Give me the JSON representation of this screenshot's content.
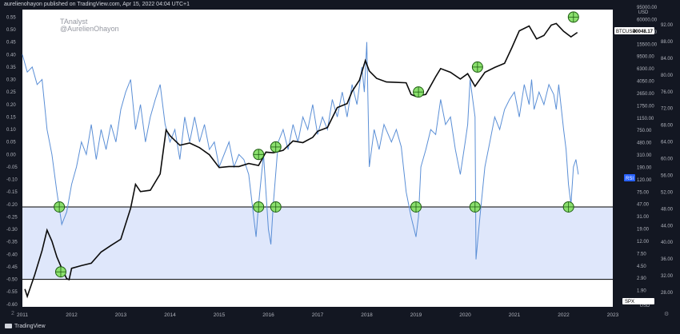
{
  "header": {
    "text": "aurelienohayon published on TradingView.com, Apr 15, 2022 04:04 UTC+1"
  },
  "watermark": {
    "line1": "TAnalyst",
    "line2": "@AurelienOhayon"
  },
  "footer": {
    "brand": "TradingView"
  },
  "controls": {
    "left_label": "2",
    "right_label": "⚙"
  },
  "colors": {
    "background": "#131722",
    "rsi_line": "#5b8fd6",
    "btc_line": "#0b0b0b",
    "band_fill": "#dfe7fb",
    "band_lines": "#000000",
    "markers_fill": "#8be06e",
    "markers_stroke": "#1f5e12",
    "badge_btc": "#ffffff",
    "badge_rsi": "#2962ff"
  },
  "chart_data": {
    "type": "line",
    "x_ticks": [
      "2011",
      "2012",
      "2013",
      "2014",
      "2015",
      "2016",
      "2017",
      "2018",
      "2019",
      "2020",
      "2021",
      "2022",
      "2023"
    ],
    "left_axis_ticks": [
      "0.55",
      "0.50",
      "0.45",
      "0.40",
      "0.35",
      "0.30",
      "0.25",
      "0.20",
      "0.15",
      "0.10",
      "0.05",
      "0.00",
      "-0.05",
      "-0.10",
      "-0.15",
      "-0.20",
      "-0.25",
      "-0.30",
      "-0.35",
      "-0.40",
      "-0.45",
      "-0.50",
      "-0.55",
      "-0.60"
    ],
    "btc_axis_ticks": [
      "95000.00",
      "60000.00",
      "23500.00",
      "15500.00",
      "9500.00",
      "6300.00",
      "4050.00",
      "2650.00",
      "1750.00",
      "1150.00",
      "750.00",
      "480.00",
      "310.00",
      "190.00",
      "120.00",
      "75.00",
      "47.00",
      "31.00",
      "19.00",
      "12.00",
      "7.50",
      "4.50",
      "2.90",
      "1.90",
      "1.25"
    ],
    "btc_axis_top_label": "USD",
    "btc_axis_bottom_label": "USD",
    "rsi_axis_ticks": [
      "92.00",
      "88.00",
      "84.00",
      "80.00",
      "76.00",
      "72.00",
      "68.00",
      "64.00",
      "60.00",
      "56.00",
      "52.00",
      "48.00",
      "44.00",
      "40.00",
      "36.00",
      "32.00",
      "28.00"
    ],
    "badges": {
      "btc": {
        "label": "BTCUSD",
        "value": "40048.17"
      },
      "rsi": {
        "label": "RSI"
      },
      "spx": {
        "label": "SPX"
      }
    },
    "series": [
      {
        "name": "BTCUSD",
        "scale": "log",
        "points": [
          [
            2011.05,
            2.0
          ],
          [
            2011.1,
            1.5
          ],
          [
            2011.25,
            3.5
          ],
          [
            2011.4,
            9
          ],
          [
            2011.5,
            20
          ],
          [
            2011.6,
            13
          ],
          [
            2011.7,
            7
          ],
          [
            2011.8,
            4.5
          ],
          [
            2011.9,
            3
          ],
          [
            2011.95,
            2.9
          ],
          [
            2012.0,
            4.5
          ],
          [
            2012.2,
            5
          ],
          [
            2012.4,
            5.5
          ],
          [
            2012.6,
            8.5
          ],
          [
            2012.8,
            11
          ],
          [
            2013.0,
            14
          ],
          [
            2013.2,
            47
          ],
          [
            2013.3,
            120
          ],
          [
            2013.4,
            90
          ],
          [
            2013.6,
            95
          ],
          [
            2013.8,
            180
          ],
          [
            2013.92,
            1000
          ],
          [
            2014.0,
            800
          ],
          [
            2014.2,
            550
          ],
          [
            2014.4,
            600
          ],
          [
            2014.6,
            500
          ],
          [
            2014.8,
            380
          ],
          [
            2015.0,
            230
          ],
          [
            2015.2,
            240
          ],
          [
            2015.4,
            240
          ],
          [
            2015.6,
            270
          ],
          [
            2015.8,
            250
          ],
          [
            2015.95,
            420
          ],
          [
            2016.1,
            410
          ],
          [
            2016.3,
            450
          ],
          [
            2016.5,
            650
          ],
          [
            2016.7,
            610
          ],
          [
            2016.9,
            750
          ],
          [
            2017.0,
            950
          ],
          [
            2017.2,
            1100
          ],
          [
            2017.4,
            2400
          ],
          [
            2017.6,
            2800
          ],
          [
            2017.7,
            4500
          ],
          [
            2017.85,
            7000
          ],
          [
            2017.97,
            15000
          ],
          [
            2018.05,
            10000
          ],
          [
            2018.2,
            7500
          ],
          [
            2018.4,
            6500
          ],
          [
            2018.6,
            6400
          ],
          [
            2018.8,
            6300
          ],
          [
            2018.9,
            4000
          ],
          [
            2019.0,
            3700
          ],
          [
            2019.2,
            4000
          ],
          [
            2019.4,
            8000
          ],
          [
            2019.5,
            11000
          ],
          [
            2019.7,
            9500
          ],
          [
            2019.9,
            7300
          ],
          [
            2020.05,
            9000
          ],
          [
            2020.2,
            5500
          ],
          [
            2020.4,
            9500
          ],
          [
            2020.6,
            11500
          ],
          [
            2020.8,
            13500
          ],
          [
            2020.95,
            25000
          ],
          [
            2021.1,
            48000
          ],
          [
            2021.3,
            58000
          ],
          [
            2021.45,
            35000
          ],
          [
            2021.6,
            40000
          ],
          [
            2021.75,
            60000
          ],
          [
            2021.85,
            64000
          ],
          [
            2022.0,
            47000
          ],
          [
            2022.15,
            38000
          ],
          [
            2022.28,
            45000
          ]
        ]
      },
      {
        "name": "RSI",
        "scale": "linear",
        "points": [
          [
            2011.0,
            0.4
          ],
          [
            2011.1,
            0.33
          ],
          [
            2011.2,
            0.35
          ],
          [
            2011.3,
            0.28
          ],
          [
            2011.4,
            0.3
          ],
          [
            2011.5,
            0.1
          ],
          [
            2011.6,
            0.0
          ],
          [
            2011.7,
            -0.15
          ],
          [
            2011.8,
            -0.28
          ],
          [
            2011.9,
            -0.23
          ],
          [
            2012.0,
            -0.12
          ],
          [
            2012.1,
            -0.05
          ],
          [
            2012.2,
            0.05
          ],
          [
            2012.3,
            0.0
          ],
          [
            2012.4,
            0.12
          ],
          [
            2012.5,
            -0.02
          ],
          [
            2012.6,
            0.1
          ],
          [
            2012.7,
            0.02
          ],
          [
            2012.8,
            0.12
          ],
          [
            2012.9,
            0.05
          ],
          [
            2013.0,
            0.18
          ],
          [
            2013.1,
            0.25
          ],
          [
            2013.2,
            0.3
          ],
          [
            2013.3,
            0.1
          ],
          [
            2013.4,
            0.2
          ],
          [
            2013.5,
            0.05
          ],
          [
            2013.6,
            0.15
          ],
          [
            2013.7,
            0.22
          ],
          [
            2013.8,
            0.28
          ],
          [
            2013.9,
            0.12
          ],
          [
            2014.0,
            0.05
          ],
          [
            2014.1,
            0.1
          ],
          [
            2014.2,
            -0.02
          ],
          [
            2014.3,
            0.15
          ],
          [
            2014.4,
            0.05
          ],
          [
            2014.5,
            0.15
          ],
          [
            2014.6,
            0.05
          ],
          [
            2014.7,
            0.12
          ],
          [
            2014.8,
            0.02
          ],
          [
            2014.9,
            0.05
          ],
          [
            2015.0,
            -0.05
          ],
          [
            2015.1,
            0.0
          ],
          [
            2015.2,
            0.05
          ],
          [
            2015.3,
            -0.05
          ],
          [
            2015.4,
            0.0
          ],
          [
            2015.5,
            -0.02
          ],
          [
            2015.6,
            -0.08
          ],
          [
            2015.7,
            -0.25
          ],
          [
            2015.75,
            -0.33
          ],
          [
            2015.8,
            -0.2
          ],
          [
            2015.9,
            0.0
          ],
          [
            2016.0,
            -0.3
          ],
          [
            2016.05,
            -0.36
          ],
          [
            2016.1,
            -0.2
          ],
          [
            2016.2,
            0.05
          ],
          [
            2016.3,
            0.1
          ],
          [
            2016.4,
            0.02
          ],
          [
            2016.5,
            0.12
          ],
          [
            2016.6,
            0.05
          ],
          [
            2016.7,
            0.15
          ],
          [
            2016.8,
            0.1
          ],
          [
            2016.9,
            0.2
          ],
          [
            2017.0,
            0.08
          ],
          [
            2017.1,
            0.15
          ],
          [
            2017.2,
            0.1
          ],
          [
            2017.3,
            0.22
          ],
          [
            2017.4,
            0.15
          ],
          [
            2017.5,
            0.25
          ],
          [
            2017.6,
            0.15
          ],
          [
            2017.7,
            0.28
          ],
          [
            2017.8,
            0.2
          ],
          [
            2017.9,
            0.35
          ],
          [
            2017.95,
            0.25
          ],
          [
            2018.0,
            0.45
          ],
          [
            2018.05,
            -0.05
          ],
          [
            2018.15,
            0.1
          ],
          [
            2018.25,
            0.02
          ],
          [
            2018.35,
            0.12
          ],
          [
            2018.5,
            0.05
          ],
          [
            2018.6,
            0.1
          ],
          [
            2018.7,
            0.03
          ],
          [
            2018.8,
            -0.15
          ],
          [
            2018.9,
            -0.25
          ],
          [
            2019.0,
            -0.33
          ],
          [
            2019.05,
            -0.25
          ],
          [
            2019.1,
            -0.05
          ],
          [
            2019.2,
            0.02
          ],
          [
            2019.3,
            0.1
          ],
          [
            2019.4,
            0.08
          ],
          [
            2019.5,
            0.22
          ],
          [
            2019.6,
            0.12
          ],
          [
            2019.7,
            0.15
          ],
          [
            2019.8,
            0.02
          ],
          [
            2019.9,
            -0.08
          ],
          [
            2020.0,
            0.05
          ],
          [
            2020.05,
            0.12
          ],
          [
            2020.1,
            0.3
          ],
          [
            2020.2,
            0.15
          ],
          [
            2020.22,
            -0.42
          ],
          [
            2020.3,
            -0.25
          ],
          [
            2020.4,
            -0.05
          ],
          [
            2020.5,
            0.05
          ],
          [
            2020.6,
            0.15
          ],
          [
            2020.7,
            0.1
          ],
          [
            2020.8,
            0.18
          ],
          [
            2020.9,
            0.22
          ],
          [
            2021.0,
            0.25
          ],
          [
            2021.1,
            0.15
          ],
          [
            2021.2,
            0.28
          ],
          [
            2021.3,
            0.2
          ],
          [
            2021.35,
            0.3
          ],
          [
            2021.4,
            0.18
          ],
          [
            2021.5,
            0.25
          ],
          [
            2021.6,
            0.2
          ],
          [
            2021.7,
            0.28
          ],
          [
            2021.8,
            0.24
          ],
          [
            2021.85,
            0.18
          ],
          [
            2021.9,
            0.28
          ],
          [
            2022.0,
            0.1
          ],
          [
            2022.05,
            0.02
          ],
          [
            2022.1,
            -0.12
          ],
          [
            2022.15,
            -0.2
          ],
          [
            2022.2,
            -0.05
          ],
          [
            2022.25,
            -0.02
          ],
          [
            2022.3,
            -0.08
          ]
        ]
      }
    ],
    "band": {
      "upper": -0.21,
      "lower": -0.5
    },
    "markers": [
      {
        "x": 2011.75,
        "y": -0.21
      },
      {
        "x": 2011.78,
        "y": -0.47
      },
      {
        "x": 2015.8,
        "y": -0.21
      },
      {
        "x": 2016.15,
        "y": -0.21
      },
      {
        "x": 2019.0,
        "y": -0.21
      },
      {
        "x": 2020.2,
        "y": -0.21
      },
      {
        "x": 2022.1,
        "y": -0.21
      },
      {
        "x": 2015.8,
        "y": 0.0
      },
      {
        "x": 2016.15,
        "y": 0.03
      },
      {
        "x": 2019.05,
        "y": 0.25
      },
      {
        "x": 2020.25,
        "y": 0.35
      },
      {
        "x": 2022.2,
        "y": 0.55
      }
    ],
    "xlim": [
      2011.0,
      2023.0
    ],
    "ylim": [
      -0.61,
      0.58
    ],
    "btc_lim": [
      1.0,
      110000
    ],
    "grid": false,
    "legend": "none"
  }
}
